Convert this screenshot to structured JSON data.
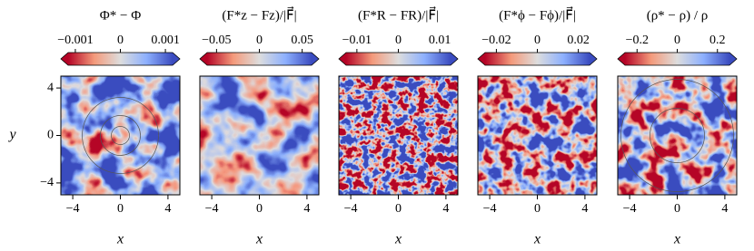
{
  "chart_data": [
    {
      "type": "heatmap",
      "title": "Φ* − Φ",
      "xlabel": "x",
      "ylabel": "y",
      "xlim": [
        -5,
        5
      ],
      "ylim": [
        -5,
        5
      ],
      "xticks": [
        {
          "value": -4,
          "label": "−4"
        },
        0,
        4
      ],
      "yticks": [
        4,
        0,
        {
          "value": -4,
          "label": "−4"
        }
      ],
      "clim": [
        -0.00116,
        0.00116
      ],
      "cticks": [
        {
          "value": -0.001,
          "label": "−0.001"
        },
        0,
        0.001
      ]
    },
    {
      "type": "heatmap",
      "title": "(F*z − Fz)/|F⃗|",
      "xlabel": "x",
      "xlim": [
        -5,
        5
      ],
      "ylim": [
        -5,
        5
      ],
      "xticks": [
        {
          "value": -4,
          "label": "−4"
        },
        0,
        4
      ],
      "clim": [
        -0.061,
        0.061
      ],
      "cticks": [
        {
          "value": -0.05,
          "label": "−0.05"
        },
        0,
        0.05
      ]
    },
    {
      "type": "heatmap",
      "title": "(F*R − FR)/|F⃗|",
      "xlabel": "x",
      "xlim": [
        -5,
        5
      ],
      "ylim": [
        -5,
        5
      ],
      "xticks": [
        {
          "value": -4,
          "label": "−4"
        },
        0,
        4
      ],
      "clim": [
        -0.0126,
        0.0126
      ],
      "cticks": [
        {
          "value": -0.01,
          "label": "−0.01"
        },
        0,
        0.01
      ]
    },
    {
      "type": "heatmap",
      "title": "(F*ϕ − Fϕ)/|F⃗|",
      "xlabel": "x",
      "xlim": [
        -5,
        5
      ],
      "ylim": [
        -5,
        5
      ],
      "xticks": [
        {
          "value": -4,
          "label": "−4"
        },
        0,
        4
      ],
      "clim": [
        -0.0255,
        0.0255
      ],
      "cticks": [
        {
          "value": -0.02,
          "label": "−0.02"
        },
        0,
        0.02
      ]
    },
    {
      "type": "heatmap",
      "title": "(ρ* − ρ) / ρ",
      "xlabel": "x",
      "xlim": [
        -5,
        5
      ],
      "ylim": [
        -5,
        5
      ],
      "xticks": [
        {
          "value": -4,
          "label": "−4"
        },
        0,
        4
      ],
      "clim": [
        -0.26,
        0.26
      ],
      "cticks": [
        {
          "value": -0.2,
          "label": "−0.2"
        },
        0,
        0.2
      ]
    }
  ]
}
